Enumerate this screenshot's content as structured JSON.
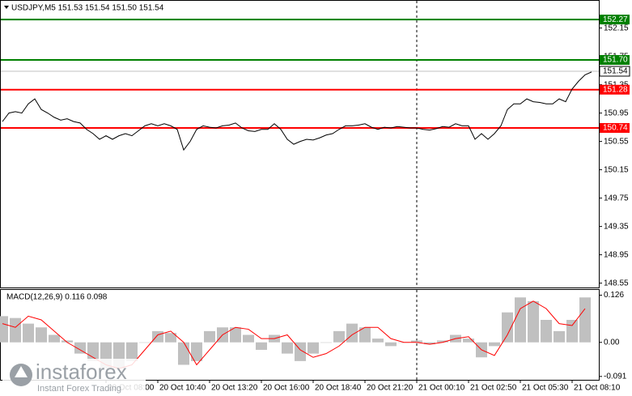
{
  "chart_data": [
    {
      "type": "line",
      "title": "USDJPY,M5  151.53 151.54 151.50 151.54",
      "categories": [
        null,
        null,
        null,
        null,
        null,
        null,
        null,
        null,
        null,
        null,
        null,
        null,
        null,
        null,
        null,
        null,
        "20 Oct 08:00",
        null,
        null,
        null,
        null,
        null,
        null,
        null,
        "20 Oct 10:40",
        null,
        null,
        null,
        null,
        null,
        null,
        null,
        "20 Oct 13:20",
        null,
        null,
        null,
        null,
        null,
        null,
        null,
        "20 Oct 16:00",
        null,
        null,
        null,
        null,
        null,
        null,
        null,
        "20 Oct 18:40",
        null,
        null,
        null,
        null,
        null,
        null,
        null,
        "20 Oct 21:20",
        null,
        null,
        null,
        null,
        null,
        null,
        null,
        "21 Oct 00:10",
        null,
        null,
        null,
        null,
        null,
        null,
        null,
        "21 Oct 02:50",
        null,
        null,
        null,
        null,
        null,
        null,
        null,
        "21 Oct 05:30",
        null,
        null,
        null,
        null,
        null,
        null,
        null,
        "21 Oct 08:10",
        null,
        null,
        null
      ],
      "series": [
        {
          "color": "#000000",
          "values": [
            150.83,
            150.95,
            150.97,
            150.95,
            151.08,
            151.15,
            151.0,
            150.95,
            150.89,
            150.85,
            150.87,
            150.83,
            150.81,
            150.72,
            150.66,
            150.58,
            150.63,
            150.58,
            150.63,
            150.66,
            150.63,
            150.7,
            150.77,
            150.8,
            150.77,
            150.8,
            150.77,
            150.72,
            150.43,
            150.55,
            150.72,
            150.77,
            150.75,
            150.74,
            150.77,
            150.78,
            150.81,
            150.74,
            150.7,
            150.69,
            150.72,
            150.72,
            150.8,
            150.72,
            150.58,
            150.51,
            150.55,
            150.58,
            150.57,
            150.6,
            150.64,
            150.66,
            150.72,
            150.77,
            150.77,
            150.78,
            150.8,
            150.75,
            150.72,
            150.75,
            150.74,
            150.76,
            150.75,
            150.74,
            150.74,
            150.72,
            150.71,
            150.73,
            150.76,
            150.75,
            150.8,
            150.77,
            150.77,
            150.58,
            150.66,
            150.58,
            150.66,
            150.77,
            151.0,
            151.08,
            151.08,
            151.15,
            151.11,
            151.1,
            151.08,
            151.08,
            151.15,
            151.11,
            151.29,
            151.4,
            151.49,
            151.53
          ]
        }
      ],
      "ylim": [
        148.5,
        152.5
      ],
      "yticks": [
        152.15,
        151.75,
        151.35,
        150.95,
        150.55,
        150.15,
        149.75,
        149.35,
        148.95,
        148.55
      ],
      "levels": [
        {
          "value": 152.27,
          "color": "#008000"
        },
        {
          "value": 151.7,
          "label": "151.70",
          "color": "#008000"
        },
        {
          "value": 151.28,
          "color": "#ff0000"
        },
        {
          "value": 150.74,
          "color": "#ff0000"
        }
      ],
      "last": 151.54,
      "last_color": "#c0c0c0"
    },
    {
      "type": "bar",
      "title": "MACD(12,26,9) 0.116 0.098",
      "series": [
        {
          "type": "bar",
          "color": "#c0c0c0",
          "values": [
            0.07,
            0.065,
            0.05,
            0.04,
            0.02,
            0.005,
            -0.03,
            -0.05,
            -0.07,
            -0.07,
            -0.05,
            0.0,
            0.03,
            0.025,
            -0.06,
            -0.05,
            0.03,
            0.04,
            0.04,
            0.02,
            -0.02,
            0.02,
            -0.03,
            -0.05,
            -0.03,
            0.0,
            0.03,
            0.05,
            0.04,
            0.01,
            -0.01,
            0.0,
            0.005,
            -0.005,
            0.005,
            0.02,
            0.01,
            -0.04,
            -0.01,
            0.08,
            0.12,
            0.11,
            0.06,
            0.03,
            0.06,
            0.12
          ]
        },
        {
          "type": "line",
          "color": "#ff0000",
          "values": [
            0.05,
            0.04,
            0.07,
            0.06,
            0.03,
            0.0,
            -0.02,
            -0.04,
            -0.06,
            -0.07,
            -0.06,
            -0.02,
            0.02,
            0.03,
            0.0,
            -0.06,
            -0.02,
            0.02,
            0.04,
            0.035,
            0.01,
            0.01,
            0.02,
            -0.02,
            -0.04,
            -0.03,
            -0.01,
            0.02,
            0.04,
            0.04,
            0.01,
            0.0,
            0.0,
            -0.005,
            0.0,
            0.01,
            0.015,
            -0.02,
            -0.035,
            0.02,
            0.09,
            0.11,
            0.09,
            0.05,
            0.045,
            0.09
          ]
        }
      ],
      "ylim": [
        -0.1,
        0.14
      ],
      "yticks": [
        0.126,
        {
          "value": 0,
          "label": "0.00"
        },
        -0.091
      ]
    }
  ],
  "watermark": {
    "brand": "instaforex",
    "tagline": "Instant Forex Trading"
  }
}
